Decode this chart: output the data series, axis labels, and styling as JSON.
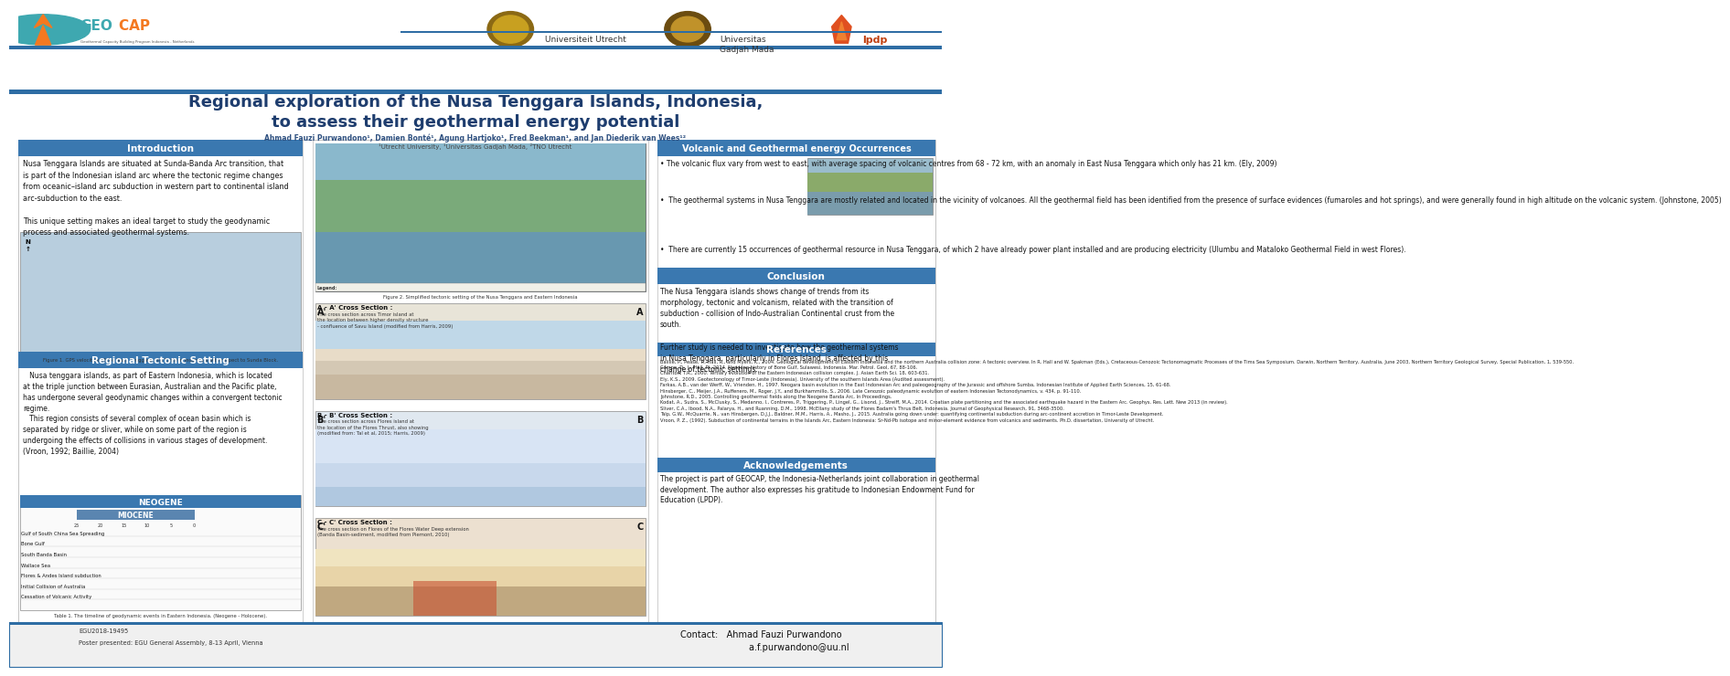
{
  "title_line1": "Regional exploration of the Nusa Tenggara Islands, Indonesia,",
  "title_line2": "to assess their geothermal energy potential",
  "authors": "Ahmad Fauzi Purwandono¹, Damien Bonté¹, Agung Hartjoko¹, Fred Beekman¹, and Jan Diederik van Wees¹²",
  "affiliations": "¹Utrecht University, ¹Universitas Gadjah Mada, ²TNO Utrecht",
  "background_color": "#ffffff",
  "blue_stripe_color": "#2e6da4",
  "section_header_color": "#3a78b0",
  "section_header_text_color": "#ffffff",
  "title_color": "#1e3d6e",
  "body_text_color": "#111111",
  "intro_title": "Introduction",
  "intro_text": "Nusa Tenggara Islands are situated at Sunda-Banda Arc transition, that\nis part of the Indonesian island arc where the tectonic regime changes\nfrom oceanic–island arc subduction in western part to continental island\narc-subduction to the east.\n\nThis unique setting makes an ideal target to study the geodynamic\nprocess and associated geothermal systems.",
  "tectonic_title": "Regional Tectonic Setting",
  "tectonic_text": "   Nusa tenggara islands, as part of Eastern Indonesia, which is located\nat the triple junction between Eurasian, Australian and the Pacific plate,\nhas undergone several geodynamic changes within a convergent tectonic\nregime.\n   This region consists of several complex of ocean basin which is\nseparated by ridge or sliver, while on some part of the region is\nundergoing the effects of collisions in various stages of development.\n(Vroon, 1992; Baillie, 2004)",
  "volcanic_title": "Volcanic and Geothermal energy Occurrences",
  "volcanic_text1": "• The volcanic flux vary from west to east, with average spacing of volcanic centres from 68 - 72 km, with an anomaly in East Nusa Tenggara which only has 21 km. (Ely, 2009)",
  "volcanic_text2": "•  The geothermal systems in Nusa Tenggara are mostly related and located in the vicinity of volcanoes. All the geothermal field has been identified from the presence of surface evidences (fumaroles and hot springs), and were generally found in high altitude on the volcanic system. (Johnstone, 2005)",
  "volcanic_text3": "•  There are currently 15 occurrences of geothermal resource in Nusa Tenggara, of which 2 have already power plant installed and are producing electricity (Ulumbu and Mataloko Geothermal Field in west Flores).",
  "conclusion_title": "Conclusion",
  "conclusion_text": "The Nusa Tenggara islands shows change of trends from its\nmorphology, tectonic and volcanism, related with the transition of\nsubduction - collision of Indo-Australian Continental crust from the\nsouth.\n\nFurther study is needed to investigate how the geothermal systems\nin Nusa Tenggara, particularly in Flores Island, is affected by this\nchange of tectonic settings.",
  "references_title": "References",
  "references_text": "Baillie, P., Pease, T., Hall, R., and Myers, K., 2004. Geological development of Eastern Indonesia and the northern Australia collision zone: A tectonic overview. In R. Hall and W. Spakman (Eds.), Cretaceous-Cenozoic Tectonomagmatic Processes of the Tims Sea Symposium. Darwin, Northern Territory, Australia, June 2003, Northern Territory Geological Survey, Special Publication, 1, 539-550.\nCampo, D., J., Hall, R., 2014. Neogene history of Bone Gulf, Sulawesi, Indonesia. Mar. Petrol. Geol, 67, 88-106.\nCharlton, T.R., 2000. Tertiary evolution of the Eastern Indonesian collision complex. J. Asian Earth Sci. 18, 603-631.\nEly, K.S., 2009. Geotectonology of Timor-Leste (Indonesia). University of the southern Islands Area (Audited assessment).\nFarkas, A.B., van der Werff, W., Vrienden, H., 1997. Neogara basin evolution in the East Indonesian Arc and paleogeography of the Jurassic and offshore Sumba, Indonesian Institute of Applied Earth Sciences, 15, 61-68.\nHinsberger, C., Meijer, J.A., Ruffenero, M., Roger, J.Y., and Burkhammillo, S., 2006. Late Cenozoic paleodynamic evolution of eastern Indonesian Tectonodynamics, v. 434, p. 91-110.\nJohnstone, R.D., 2005. Controlling geothermal fields along the Neogene Banda Arc, In Proceedings.\nKodat, A., Sudra, S., McClusky, S., Medanno, I., Contreres, P., Triggering, P., Lingel, G., Lisond, J., Streiff, M.A., 2014. Croatian plate partitioning and the associated earthquake hazard in the Eastern Arc. Geophys. Res. Lett. New 2013 (in review).\nSliver, C.A., Ibood, N.A., Palarya, H., and Ruanning, D.M., 1998. McEllany study of the Flores Badam's Thrus Belt, Indonesia. Journal of Geophysical Research, 91, 3468-3500.\nTalp, G.W., McQuarrie, N., van Hinsbergen, D.J.J., Baldner, M.M., Harris, A., Masho, J., 2015. Australia going down under: quantifying continental subduction during arc-continent accretion in Timor-Leste Development.\nVroon, P. Z., (1992). Subduction of continental terrains in the Islands Arc, Eastern Indonesia: Sr-Nd-Pb isotope and minor-element evidence from volcanics and sediments. Ph.D. dissertation, University of Utrecht.",
  "acknowledgements_title": "Acknowledgements",
  "acknowledgements_text": "The project is part of GEOCAP, the Indonesia-Netherlands joint collaboration in geothermal\ndevelopment. The author also expresses his gratitude to Indonesian Endowment Fund for\nEducation (LPDP).",
  "contact_label": "Contact:",
  "contact_name": "Ahmad Fauzi Purwandono",
  "contact_email": "a.f.purwandono@uu.nl",
  "footer_left1": "EGU2018-19495",
  "footer_left2": "Poster presented: EGU General Assembly, 8-13 April, Vienna",
  "fig2_caption": "Figure 2. Simplified tectonic setting of the Nusa Tenggara and Eastern Indonesia",
  "fig1_caption": "Figure 1. GPS velocities of the Nusa Tenggara and Eastern Indonesia with respect to Sunda Block.",
  "table1_caption": "Table 1. The timeline of geodynamic events in Eastern Indonesia. (Neogene - Holocene).",
  "cs_aa_title": "A - A' Cross Section :",
  "cs_aa_text": "The cross section across Timor island at\nthe location between higher density structure\n- confluence of Savu Island (modified from Harris, 2009)",
  "cs_bb_title": "B - B' Cross Section :",
  "cs_bb_text": "The cross section across Flores island at\nthe location of the Flores Thrust, also showing\n(modified from: Tal et al, 2015; Harris, 2009)",
  "cs_cc_title": "C - C' Cross Section :",
  "cs_cc_text": "The cross section on Flores of the Flores Water Deep extension\n(Banda Basin-sediment, modified from Piemont, 2010)",
  "geocap_text": "GEOCAP",
  "geocap_subtext": "Geothermal Capacity Building Program Indonesia - Netherlands",
  "uu_text": "Universiteit Utrecht",
  "ugm_text": "Universitas\nGadjah Mada",
  "lpdp_text": "lpdp"
}
